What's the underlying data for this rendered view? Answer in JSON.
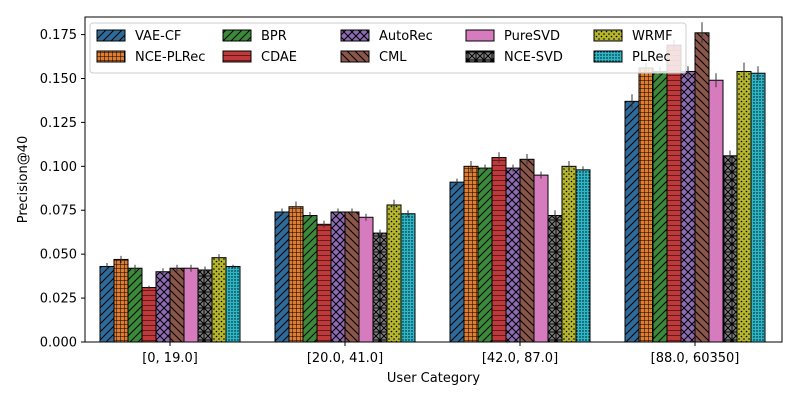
{
  "chart_data": {
    "type": "bar",
    "title": "",
    "xlabel": "User Category",
    "ylabel": "Precision@40",
    "categories": [
      "[0, 19.0]",
      "[20.0, 41.0]",
      "[42.0, 87.0]",
      "[88.0, 60350]"
    ],
    "ylim": [
      0,
      0.185
    ],
    "yticks": [
      0.0,
      0.025,
      0.05,
      0.075,
      0.1,
      0.125,
      0.15,
      0.175
    ],
    "ytick_labels": [
      "0.000",
      "0.025",
      "0.050",
      "0.075",
      "0.100",
      "0.125",
      "0.150",
      "0.175"
    ],
    "grid": false,
    "legend_position": "top-left",
    "legend_columns": 5,
    "series": [
      {
        "name": "VAE-CF",
        "color": "#2f6b9a",
        "hatch": "diag",
        "values": [
          0.043,
          0.074,
          0.091,
          0.137
        ],
        "errors": [
          0.002,
          0.002,
          0.002,
          0.004
        ]
      },
      {
        "name": "NCE-PLRec",
        "color": "#e07d32",
        "hatch": "grid",
        "values": [
          0.047,
          0.077,
          0.1,
          0.156
        ],
        "errors": [
          0.002,
          0.003,
          0.003,
          0.003
        ]
      },
      {
        "name": "BPR",
        "color": "#3a8a3a",
        "hatch": "diag",
        "values": [
          0.042,
          0.072,
          0.099,
          0.154
        ],
        "errors": [
          0.002,
          0.002,
          0.002,
          0.003
        ]
      },
      {
        "name": "CDAE",
        "color": "#c0393a",
        "hatch": "hline",
        "values": [
          0.031,
          0.067,
          0.105,
          0.169
        ],
        "errors": [
          0.001,
          0.002,
          0.003,
          0.003
        ]
      },
      {
        "name": "AutoRec",
        "color": "#8c6bb1",
        "hatch": "cross",
        "values": [
          0.04,
          0.074,
          0.099,
          0.154
        ],
        "errors": [
          0.002,
          0.002,
          0.002,
          0.003
        ]
      },
      {
        "name": "CML",
        "color": "#8a564a",
        "hatch": "backdiag",
        "values": [
          0.042,
          0.074,
          0.104,
          0.176
        ],
        "errors": [
          0.002,
          0.002,
          0.003,
          0.006
        ]
      },
      {
        "name": "PureSVD",
        "color": "#d77bbf",
        "hatch": "none",
        "values": [
          0.042,
          0.071,
          0.095,
          0.149
        ],
        "errors": [
          0.002,
          0.002,
          0.002,
          0.004
        ]
      },
      {
        "name": "NCE-SVD",
        "color": "#7f7f7f",
        "hatch": "xgrid",
        "values": [
          0.041,
          0.062,
          0.072,
          0.106
        ],
        "errors": [
          0.002,
          0.002,
          0.003,
          0.003
        ]
      },
      {
        "name": "WRMF",
        "color": "#b5b530",
        "hatch": "dots",
        "values": [
          0.048,
          0.078,
          0.1,
          0.154
        ],
        "errors": [
          0.002,
          0.003,
          0.003,
          0.005
        ]
      },
      {
        "name": "PLRec",
        "color": "#2cb8c8",
        "hatch": "densedots",
        "values": [
          0.043,
          0.073,
          0.098,
          0.153
        ],
        "errors": [
          0.001,
          0.002,
          0.002,
          0.004
        ]
      }
    ]
  }
}
